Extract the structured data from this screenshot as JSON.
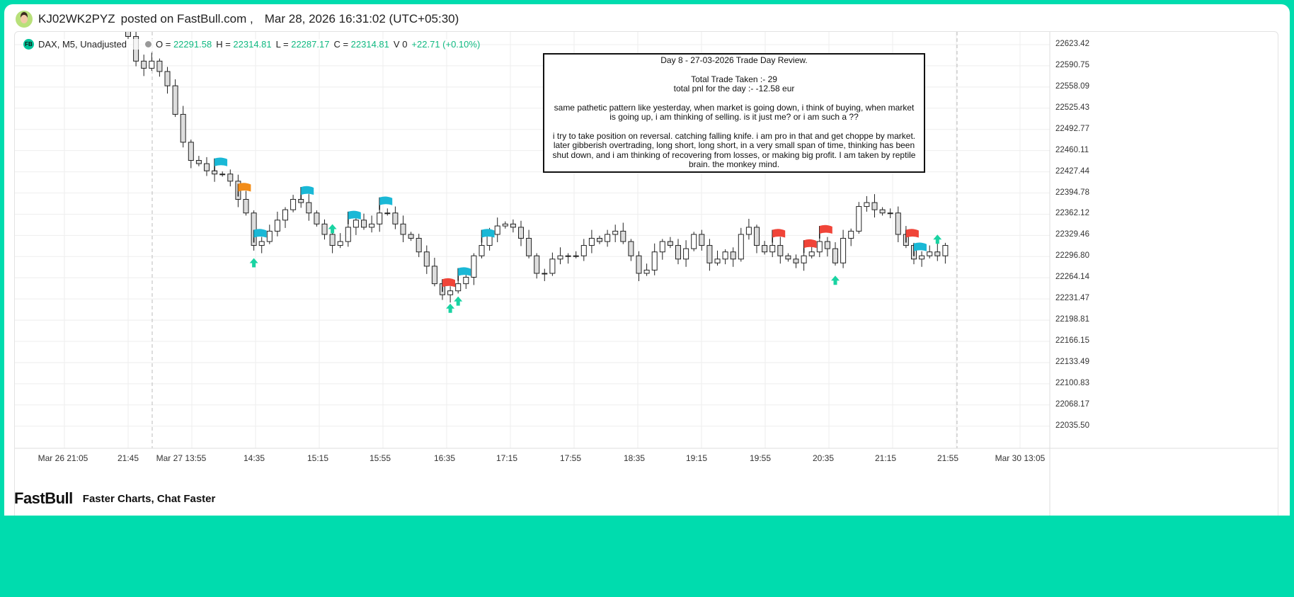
{
  "header": {
    "username": "KJ02WK2PYZ",
    "posted_text": "posted on FastBull.com ,",
    "timestamp": "Mar 28, 2026 16:31:02 (UTC+05:30)"
  },
  "legend": {
    "badge": "FB",
    "symbol": "DAX, M5, Unadjusted",
    "o": "O = ",
    "o_val": "22291.58",
    "h": "H = ",
    "h_val": "22314.81",
    "l": "L = ",
    "l_val": "22287.17",
    "c": "C = ",
    "c_val": "22314.81",
    "v": "V 0",
    "change": "+22.71 (+0.10%)"
  },
  "note": {
    "title": "Day 8 - 27-03-2026 Trade Day Review.",
    "trades": "Total Trade Taken :- 29",
    "pnl": "total pnl for the day :- -12.58 eur",
    "para1": "same pathetic pattern like yesterday, when market is going down, i think of buying, when market is going up, i am thinking of selling. is it just me? or i am such a ??",
    "para2": "i try to take position on reversal. catching falling knife. i am pro in that and get choppe by market. later gibberish overtrading, long short, long short, in a very small span of time, thinking has been shut down, and i am thinking of recovering from losses, or making big profit. I am taken by reptile brain. the monkey mind."
  },
  "price_axis": [
    "22623.42",
    "22590.75",
    "22558.09",
    "22525.43",
    "22492.77",
    "22460.11",
    "22427.44",
    "22394.78",
    "22362.12",
    "22329.46",
    "22296.80",
    "22264.14",
    "22231.47",
    "22198.81",
    "22166.15",
    "22133.49",
    "22100.83",
    "22068.17",
    "22035.50"
  ],
  "time_axis": [
    "Mar 26 21:05",
    "21:45",
    "Mar 27 13:55",
    "14:35",
    "15:15",
    "15:55",
    "16:35",
    "17:15",
    "17:55",
    "18:35",
    "19:15",
    "19:55",
    "20:35",
    "21:15",
    "21:55",
    "Mar 30 13:05"
  ],
  "chart_data": {
    "type": "candlestick",
    "price_range": [
      22010,
      22650
    ],
    "closes": [
      22636,
      22598,
      22587,
      22598,
      22582,
      22560,
      22516,
      22473,
      22445,
      22440,
      22429,
      22424,
      22424,
      22413,
      22385,
      22364,
      22314,
      22320,
      22336,
      22353,
      22369,
      22385,
      22380,
      22364,
      22347,
      22331,
      22314,
      22320,
      22342,
      22353,
      22342,
      22347,
      22364,
      22364,
      22347,
      22331,
      22325,
      22304,
      22282,
      22255,
      22238,
      22244,
      22255,
      22265,
      22298,
      22314,
      22331,
      22344,
      22347,
      22342,
      22325,
      22298,
      22271,
      22271,
      22293,
      22298,
      22298,
      22298,
      22314,
      22325,
      22320,
      22331,
      22336,
      22320,
      22298,
      22271,
      22276,
      22304,
      22320,
      22314,
      22293,
      22309,
      22331,
      22314,
      22287,
      22293,
      22304,
      22293,
      22331,
      22342,
      22314,
      22304,
      22314,
      22298,
      22293,
      22287,
      22298,
      22304,
      22320,
      22309,
      22287,
      22325,
      22336,
      22374,
      22380,
      22369,
      22364,
      22364,
      22331,
      22314,
      22293,
      22298,
      22304,
      22298,
      22314
    ],
    "flags": [
      {
        "i": 11,
        "color": "#1ab8d6"
      },
      {
        "i": 14,
        "color": "#f28c18"
      },
      {
        "i": 16,
        "color": "#1ab8d6"
      },
      {
        "i": 22,
        "color": "#1ab8d6"
      },
      {
        "i": 28,
        "color": "#1ab8d6"
      },
      {
        "i": 32,
        "color": "#1ab8d6"
      },
      {
        "i": 40,
        "color": "#f04438"
      },
      {
        "i": 42,
        "color": "#1ab8d6"
      },
      {
        "i": 45,
        "color": "#1ab8d6"
      },
      {
        "i": 82,
        "color": "#f04438"
      },
      {
        "i": 86,
        "color": "#f04438"
      },
      {
        "i": 88,
        "color": "#f04438"
      },
      {
        "i": 99,
        "color": "#f04438"
      },
      {
        "i": 100,
        "color": "#1ab8d6"
      }
    ]
  },
  "footer": {
    "logo": "FastBull",
    "tagline": "Faster Charts, Chat Faster"
  }
}
